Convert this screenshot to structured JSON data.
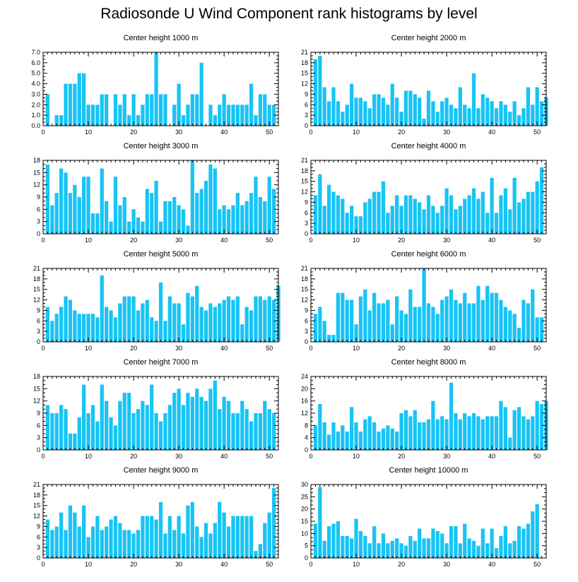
{
  "title": "Radiosonde U Wind Component rank histograms by level",
  "colors": {
    "bar": "#18c4f5",
    "axis": "#000000",
    "background": "#ffffff"
  },
  "chart_data": [
    {
      "type": "bar",
      "title": "Center height 1000 m",
      "xlim": [
        0,
        52
      ],
      "ylim": [
        0,
        7
      ],
      "xticks": [
        0,
        10,
        20,
        30,
        40,
        50
      ],
      "yticks": [
        0,
        1,
        2,
        3,
        4,
        5,
        6,
        7
      ],
      "ytick_labels": [
        "0.0",
        "1.0",
        "2.0",
        "3.0",
        "4.0",
        "5.0",
        "6.0",
        "7.0"
      ],
      "y_side": "left",
      "values": [
        3,
        0,
        1,
        1,
        4,
        4,
        4,
        5,
        5,
        2,
        2,
        2,
        3,
        3,
        0,
        3,
        2,
        3,
        1,
        3,
        1,
        2,
        3,
        3,
        7,
        3,
        3,
        0,
        2,
        4,
        1,
        2,
        3,
        3,
        6,
        0,
        2,
        1,
        2,
        3,
        2,
        2,
        2,
        2,
        2,
        4,
        1,
        3,
        3,
        2,
        2
      ]
    },
    {
      "type": "bar",
      "title": "Center height 2000 m",
      "xlim": [
        0,
        52
      ],
      "ylim": [
        0,
        21
      ],
      "xticks": [
        0,
        10,
        20,
        30,
        40,
        50
      ],
      "yticks": [
        0,
        3,
        6,
        9,
        12,
        15,
        18,
        21
      ],
      "ytick_labels": [
        "0",
        "3",
        "6",
        "9",
        "12",
        "15",
        "18",
        "21"
      ],
      "y_side": "right",
      "values": [
        19,
        20,
        11,
        7,
        11,
        7,
        4,
        6,
        12,
        8,
        8,
        7,
        5,
        9,
        9,
        8,
        6,
        12,
        8,
        4,
        10,
        10,
        9,
        8,
        2,
        10,
        7,
        4,
        7,
        8,
        6,
        5,
        11,
        6,
        5,
        15,
        5,
        9,
        8,
        7,
        5,
        7,
        6,
        4,
        7,
        3,
        5,
        11,
        6,
        11,
        7,
        8
      ]
    },
    {
      "type": "bar",
      "title": "Center height 3000 m",
      "xlim": [
        0,
        52
      ],
      "ylim": [
        0,
        18
      ],
      "xticks": [
        0,
        10,
        20,
        30,
        40,
        50
      ],
      "yticks": [
        0,
        3,
        6,
        9,
        12,
        15,
        18
      ],
      "ytick_labels": [
        "0",
        "3",
        "6",
        "9",
        "12",
        "15",
        "18"
      ],
      "y_side": "left",
      "values": [
        17,
        7,
        10,
        16,
        15,
        10,
        12,
        9,
        14,
        14,
        5,
        5,
        16,
        8,
        3,
        14,
        7,
        9,
        3,
        6,
        4,
        3,
        11,
        10,
        13,
        3,
        8,
        8,
        9,
        7,
        6,
        2,
        18,
        10,
        11,
        13,
        17,
        16,
        6,
        7,
        6,
        7,
        10,
        7,
        8,
        10,
        14,
        9,
        8,
        14,
        11
      ]
    },
    {
      "type": "bar",
      "title": "Center height 4000 m",
      "xlim": [
        0,
        52
      ],
      "ylim": [
        0,
        21
      ],
      "xticks": [
        0,
        10,
        20,
        30,
        40,
        50
      ],
      "yticks": [
        0,
        3,
        6,
        9,
        12,
        15,
        18,
        21
      ],
      "ytick_labels": [
        "0",
        "3",
        "6",
        "9",
        "12",
        "15",
        "18",
        "21"
      ],
      "y_side": "right",
      "values": [
        11,
        17,
        8,
        14,
        12,
        11,
        10,
        6,
        8,
        5,
        5,
        9,
        10,
        12,
        12,
        15,
        6,
        8,
        11,
        8,
        11,
        11,
        10,
        9,
        7,
        11,
        8,
        6,
        8,
        13,
        11,
        7,
        8,
        10,
        11,
        13,
        10,
        12,
        6,
        16,
        6,
        11,
        13,
        7,
        16,
        9,
        10,
        12,
        12,
        15,
        19
      ]
    },
    {
      "type": "bar",
      "title": "Center height 5000 m",
      "xlim": [
        0,
        52
      ],
      "ylim": [
        0,
        21
      ],
      "xticks": [
        0,
        10,
        20,
        30,
        40,
        50
      ],
      "yticks": [
        0,
        3,
        6,
        9,
        12,
        15,
        18,
        21
      ],
      "ytick_labels": [
        "0",
        "3",
        "6",
        "9",
        "12",
        "15",
        "18",
        "21"
      ],
      "y_side": "left",
      "values": [
        10,
        6,
        8,
        10,
        13,
        12,
        9,
        8,
        8,
        8,
        8,
        7,
        19,
        10,
        9,
        7,
        11,
        13,
        13,
        13,
        9,
        11,
        12,
        7,
        6,
        17,
        6,
        13,
        11,
        11,
        5,
        14,
        13,
        16,
        10,
        9,
        11,
        10,
        11,
        12,
        13,
        12,
        13,
        5,
        10,
        9,
        13,
        13,
        12,
        13,
        12,
        16
      ]
    },
    {
      "type": "bar",
      "title": "Center height 6000 m",
      "xlim": [
        0,
        52
      ],
      "ylim": [
        0,
        21
      ],
      "xticks": [
        0,
        10,
        20,
        30,
        40,
        50
      ],
      "yticks": [
        0,
        3,
        6,
        9,
        12,
        15,
        18,
        21
      ],
      "ytick_labels": [
        "0",
        "3",
        "6",
        "9",
        "12",
        "15",
        "18",
        "21"
      ],
      "y_side": "right",
      "values": [
        8,
        10,
        6,
        2,
        2,
        14,
        14,
        12,
        12,
        5,
        13,
        15,
        9,
        14,
        11,
        11,
        12,
        5,
        13,
        9,
        8,
        15,
        10,
        10,
        21,
        11,
        10,
        8,
        12,
        13,
        15,
        12,
        11,
        14,
        11,
        11,
        16,
        12,
        16,
        14,
        14,
        12,
        10,
        9,
        8,
        4,
        12,
        11,
        15,
        7,
        7
      ]
    },
    {
      "type": "bar",
      "title": "Center height 7000 m",
      "xlim": [
        0,
        52
      ],
      "ylim": [
        0,
        18
      ],
      "xticks": [
        0,
        10,
        20,
        30,
        40,
        50
      ],
      "yticks": [
        0,
        3,
        6,
        9,
        12,
        15,
        18
      ],
      "ytick_labels": [
        "0",
        "3",
        "6",
        "9",
        "12",
        "15",
        "18"
      ],
      "y_side": "left",
      "values": [
        11,
        9,
        9,
        11,
        10,
        4,
        4,
        8,
        16,
        9,
        11,
        7,
        16,
        12,
        8,
        6,
        12,
        14,
        14,
        9,
        10,
        12,
        11,
        16,
        9,
        7,
        9,
        11,
        14,
        15,
        11,
        14,
        13,
        15,
        13,
        12,
        15,
        17,
        10,
        13,
        12,
        9,
        9,
        12,
        10,
        7,
        9,
        9,
        12,
        10,
        9
      ]
    },
    {
      "type": "bar",
      "title": "Center height 8000 m",
      "xlim": [
        0,
        52
      ],
      "ylim": [
        0,
        24
      ],
      "xticks": [
        0,
        10,
        20,
        30,
        40,
        50
      ],
      "yticks": [
        0,
        4,
        8,
        12,
        16,
        20,
        24
      ],
      "ytick_labels": [
        "0",
        "4",
        "8",
        "12",
        "16",
        "20",
        "24"
      ],
      "y_side": "right",
      "values": [
        8,
        15,
        9,
        5,
        9,
        6,
        8,
        6,
        14,
        9,
        6,
        10,
        11,
        9,
        6,
        7,
        8,
        7,
        6,
        12,
        13,
        11,
        13,
        9,
        9,
        10,
        16,
        10,
        11,
        10,
        22,
        12,
        10,
        12,
        11,
        12,
        11,
        10,
        11,
        11,
        11,
        16,
        14,
        4,
        13,
        14,
        11,
        10,
        11,
        16,
        15,
        16
      ]
    },
    {
      "type": "bar",
      "title": "Center height 9000 m",
      "xlim": [
        0,
        52
      ],
      "ylim": [
        0,
        21
      ],
      "xticks": [
        0,
        10,
        20,
        30,
        40,
        50
      ],
      "yticks": [
        0,
        3,
        6,
        9,
        12,
        15,
        18,
        21
      ],
      "ytick_labels": [
        "0",
        "3",
        "6",
        "9",
        "12",
        "15",
        "18",
        "21"
      ],
      "y_side": "left",
      "values": [
        11,
        8,
        9,
        13,
        8,
        15,
        13,
        9,
        15,
        6,
        9,
        12,
        8,
        9,
        11,
        12,
        10,
        8,
        8,
        7,
        8,
        12,
        12,
        12,
        11,
        16,
        7,
        12,
        8,
        12,
        7,
        15,
        16,
        9,
        6,
        10,
        7,
        10,
        16,
        13,
        9,
        12,
        12,
        12,
        12,
        12,
        2,
        4,
        10,
        13,
        20
      ]
    },
    {
      "type": "bar",
      "title": "Center height 10000 m",
      "xlim": [
        0,
        52
      ],
      "ylim": [
        0,
        30
      ],
      "xticks": [
        0,
        10,
        20,
        30,
        40,
        50
      ],
      "yticks": [
        0,
        5,
        10,
        15,
        20,
        25,
        30
      ],
      "ytick_labels": [
        "0",
        "5",
        "10",
        "15",
        "20",
        "25",
        "30"
      ],
      "y_side": "right",
      "values": [
        14,
        29,
        7,
        13,
        14,
        15,
        9,
        9,
        8,
        16,
        11,
        9,
        6,
        13,
        6,
        10,
        6,
        7,
        8,
        6,
        5,
        9,
        7,
        12,
        8,
        8,
        12,
        11,
        10,
        6,
        13,
        13,
        6,
        14,
        8,
        7,
        5,
        12,
        6,
        12,
        4,
        9,
        13,
        6,
        7,
        13,
        12,
        14,
        19,
        22
      ]
    }
  ]
}
